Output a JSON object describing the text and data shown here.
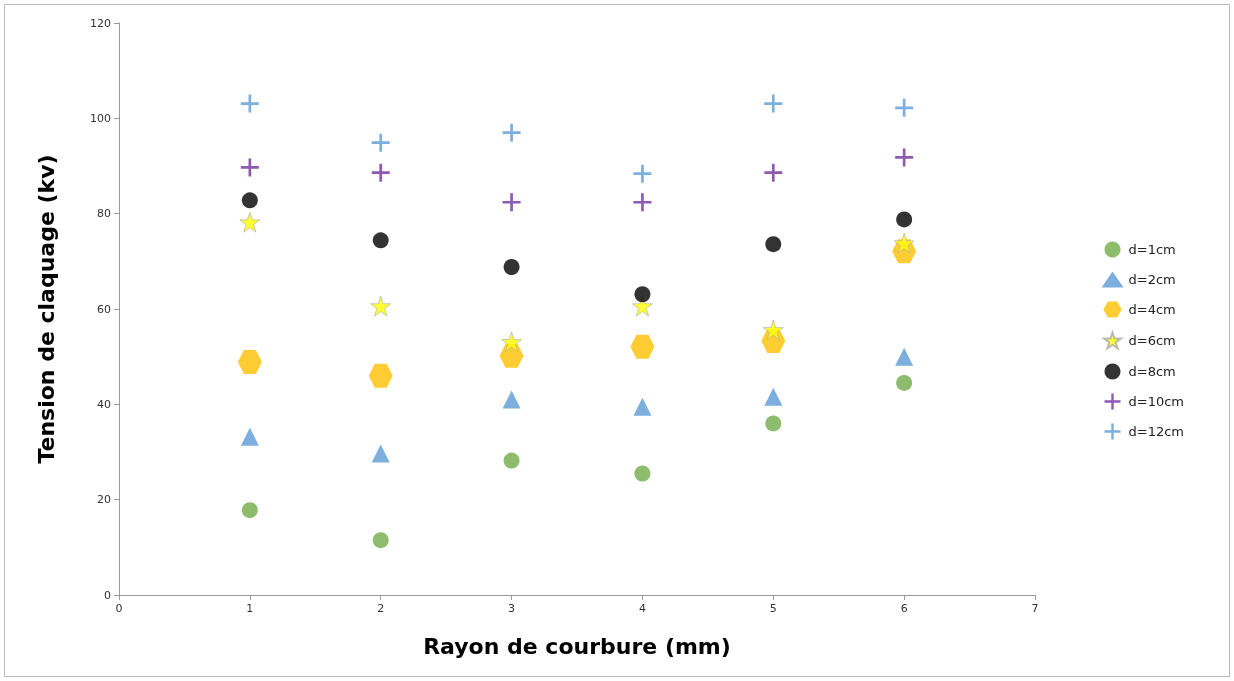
{
  "chart_data": {
    "type": "scatter",
    "xlabel": "Rayon de courbure (mm)",
    "ylabel": "Tension de claquage (kv)",
    "x": [
      1,
      2,
      3,
      4,
      5,
      6
    ],
    "series": [
      {
        "name": "d=1cm",
        "color": "#70ad47",
        "marker": "circle",
        "values": [
          17.8,
          11.5,
          28.2,
          25.5,
          36.0,
          44.5
        ]
      },
      {
        "name": "d=2cm",
        "color": "#5b9bd5",
        "marker": "triangle",
        "values": [
          33.2,
          29.7,
          41.0,
          39.5,
          41.6,
          50.0
        ]
      },
      {
        "name": "d=4cm",
        "color": "#ffc000",
        "marker": "diamond",
        "values": [
          48.9,
          46.0,
          50.2,
          52.1,
          53.3,
          72.1
        ]
      },
      {
        "name": "d=6cm",
        "color": "#ffff00",
        "marker": "star",
        "values": [
          78.2,
          60.6,
          53.1,
          60.6,
          55.6,
          73.8
        ]
      },
      {
        "name": "d=8cm",
        "color": "#000000",
        "marker": "circle",
        "values": [
          82.8,
          74.4,
          68.8,
          63.1,
          73.6,
          78.8
        ]
      },
      {
        "name": "d=10cm",
        "color": "#7030a0",
        "marker": "cross",
        "values": [
          89.7,
          88.6,
          82.4,
          82.4,
          88.6,
          91.8
        ]
      },
      {
        "name": "d=12cm",
        "color": "#5b9bd5",
        "marker": "cross",
        "values": [
          103.1,
          94.9,
          97.0,
          88.4,
          103.1,
          102.2
        ]
      }
    ],
    "xlim": [
      0,
      7
    ],
    "xticks": [
      0,
      1,
      2,
      3,
      4,
      5,
      6,
      7
    ],
    "ylim": [
      0,
      120
    ],
    "yticks": [
      0,
      20,
      40,
      60,
      80,
      100,
      120
    ],
    "grid": false,
    "legend": "right"
  }
}
